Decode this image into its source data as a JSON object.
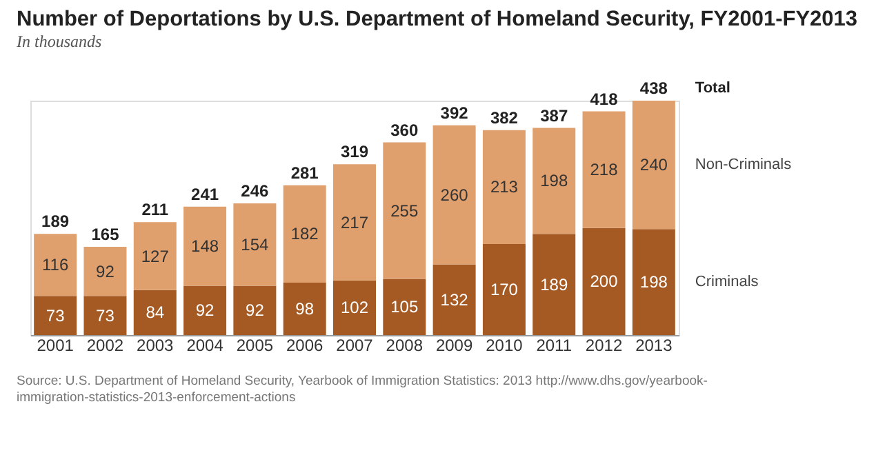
{
  "chart_data": {
    "type": "bar",
    "stacked": true,
    "title": "Number of Deportations by U.S. Department of Homeland Security, FY2001-FY2013",
    "subtitle": "In thousands",
    "categories": [
      "2001",
      "2002",
      "2003",
      "2004",
      "2005",
      "2006",
      "2007",
      "2008",
      "2009",
      "2010",
      "2011",
      "2012",
      "2013"
    ],
    "series": [
      {
        "name": "Criminals",
        "color": "#a65a23",
        "values": [
          73,
          73,
          84,
          92,
          92,
          98,
          102,
          105,
          132,
          170,
          189,
          200,
          198
        ]
      },
      {
        "name": "Non-Criminals",
        "color": "#e0a06e",
        "values": [
          116,
          92,
          127,
          148,
          154,
          182,
          217,
          255,
          260,
          213,
          198,
          218,
          240
        ]
      }
    ],
    "data_labels": true,
    "totals": [
      "189",
      "165",
      "211",
      "241",
      "246",
      "281",
      "319",
      "360",
      "392",
      "382",
      "387",
      "418",
      "438"
    ],
    "annotations": [
      "Total",
      "Source: U.S. Department of Homeland Security, Yearbook of Immigration Statistics: 2013 http://www.dhs.gov/yearbook-immigration-statistics-2013-enforcement-actions"
    ]
  }
}
